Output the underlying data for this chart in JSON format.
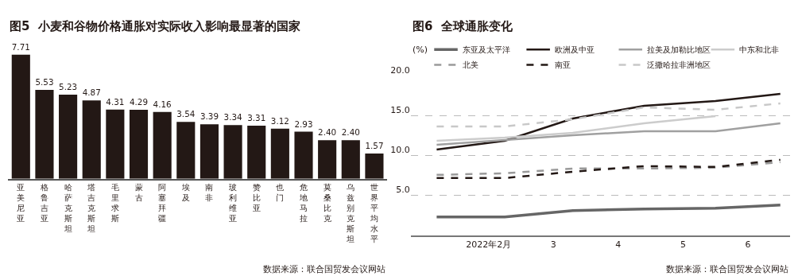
{
  "chart_data": [
    {
      "type": "bar",
      "title": "图5  小麦和谷物价格通胀对实际收入影响最显著的国家",
      "categories": [
        "亚美尼亚",
        "格鲁吉亚",
        "哈萨克斯坦",
        "塔吉克斯坦",
        "毛里求斯",
        "蒙古",
        "阿塞拜疆",
        "埃及",
        "南非",
        "玻利维亚",
        "赞比亚",
        "也门",
        "危地马拉",
        "莫桑比克",
        "乌兹别克斯坦",
        "世界平均水平"
      ],
      "values": [
        7.71,
        5.53,
        5.23,
        4.87,
        4.31,
        4.29,
        4.16,
        3.54,
        3.39,
        3.34,
        3.31,
        3.12,
        2.93,
        2.4,
        2.4,
        1.57
      ],
      "value_labels": [
        "7.71",
        "5.53",
        "5.23",
        "4.87",
        "4.31",
        "4.29",
        "4.16",
        "3.54",
        "3.39",
        "3.34",
        "3.31",
        "3.12",
        "2.93",
        "2.40",
        "2.40",
        "1.57"
      ],
      "color": "#231815",
      "tick_labels": "x",
      "grid": false,
      "annotations": [
        "数据来源：联合国贸发会议网站"
      ]
    },
    {
      "type": "line",
      "title": "图6  全球通胀变化",
      "ylabel": "(%)",
      "x": [
        1.2,
        2.25,
        3.3,
        4.4,
        5.5,
        6.5
      ],
      "series": [
        {
          "name": "东亚及太平洋",
          "color": "#666666",
          "line_style": "solid",
          "values": [
            2.3,
            2.3,
            3.1,
            3.3,
            3.4,
            3.8
          ]
        },
        {
          "name": "欧洲及中亚",
          "color": "#231815",
          "line_style": "solid",
          "values": [
            10.8,
            11.9,
            14.7,
            16.3,
            16.9,
            17.8
          ]
        },
        {
          "name": "拉美及加勒比地区",
          "color": "#a0a0a0",
          "line_style": "solid",
          "values": [
            11.4,
            12.0,
            12.6,
            13.1,
            13.1,
            14.1
          ]
        },
        {
          "name": "中东和北非",
          "color": "#cccccc",
          "line_style": "solid",
          "values": [
            11.9,
            12.3,
            12.9,
            14.1,
            15.0,
            null
          ]
        },
        {
          "name": "北美",
          "color": "#9a9a9a",
          "line_style": "dashed",
          "values": [
            7.6,
            7.8,
            8.4,
            8.4,
            8.5,
            9.2
          ]
        },
        {
          "name": "南亚",
          "color": "#231815",
          "line_style": "dashed",
          "values": [
            7.2,
            7.2,
            8.0,
            8.7,
            8.6,
            9.5
          ]
        },
        {
          "name": "泛撒哈拉非洲地区",
          "color": "#c8c8c8",
          "line_style": "dashed",
          "values": [
            13.7,
            13.7,
            14.6,
            16.1,
            15.8,
            16.6
          ]
        }
      ],
      "xlim": [
        0.8,
        6.65
      ],
      "xticks": [
        {
          "value": 2,
          "label": "2022年2月"
        },
        3,
        4,
        5,
        6
      ],
      "ylim": [
        0,
        20
      ],
      "yticks": [
        {
          "value": 5,
          "label": "5.0"
        },
        {
          "value": 10,
          "label": "10.0"
        },
        {
          "value": 15,
          "label": "15.0"
        },
        {
          "value": 20,
          "label": "20.0"
        }
      ],
      "grid": "y",
      "legend": "top",
      "marker": "none",
      "annotations": [
        "数据来源：联合国贸发会议网站"
      ]
    }
  ]
}
